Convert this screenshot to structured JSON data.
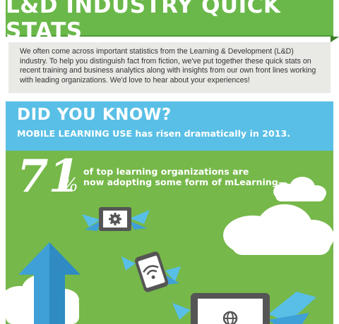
{
  "header": {
    "title": "L&D INDUSTRY QUICK STATS"
  },
  "intro": {
    "text": "We often come across important statistics from the Learning & Development (L&D) industry. To help you distinguish fact from fiction, we've put together these quick stats on recent training and business analytics along with insights from our own front lines working with leading organizations. We'd love to hear about your experiences!"
  },
  "did_you_know": {
    "title": "DID YOU KNOW?",
    "subtitle": "MOBILE LEARNING USE has risen dramatically in 2013."
  },
  "stat": {
    "value": "71",
    "percent_sign": "%",
    "text_line1": "of top learning organizations are",
    "text_line2": "now adopting some form of mLearning—"
  },
  "colors": {
    "banner_green": "#6ab84a",
    "panel_gray": "#e9e9e6",
    "section_blue": "#59bfe6",
    "section_green": "#76b84a"
  },
  "icons": [
    "gear-icon",
    "wifi-icon",
    "globe-icon",
    "cloud-icon",
    "up-arrow-icon",
    "wing-icon"
  ]
}
